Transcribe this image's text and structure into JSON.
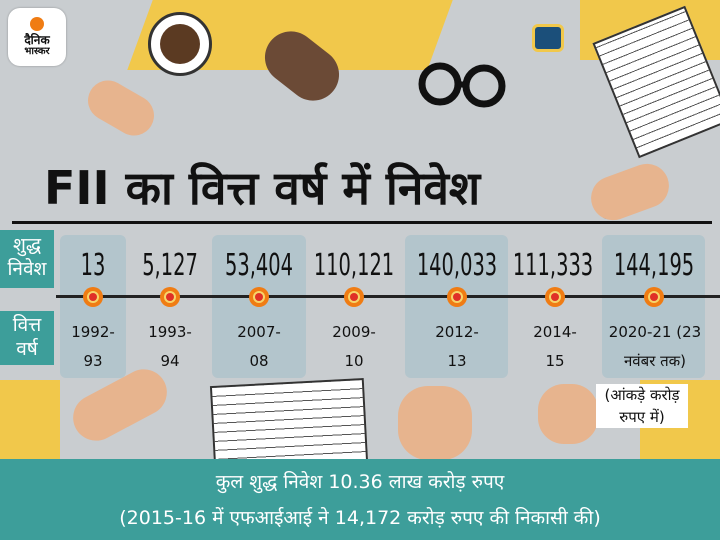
{
  "logo": {
    "line1": "दैनिक",
    "line2": "भास्कर"
  },
  "title": "FII का वित्त वर्ष में निवेश",
  "row_labels": {
    "net": [
      "शुद्ध",
      "निवेश"
    ],
    "year": [
      "वित्त",
      "वर्ष"
    ]
  },
  "entries": [
    {
      "net": "13",
      "year": [
        "1992-",
        "93"
      ]
    },
    {
      "net": "5,127",
      "year": [
        "1993-",
        "94"
      ]
    },
    {
      "net": "53,404",
      "year": [
        "2007-",
        "08"
      ]
    },
    {
      "net": "110,121",
      "year": [
        "2009-",
        "10"
      ]
    },
    {
      "net": "140,033",
      "year": [
        "2012-",
        "13"
      ]
    },
    {
      "net": "111,333",
      "year": [
        "2014-",
        "15"
      ]
    },
    {
      "net": "144,195",
      "year": [
        "2020-21 (23",
        "नवंबर तक)"
      ]
    }
  ],
  "note": [
    "(आंकड़े करोड़",
    "रुपए में)"
  ],
  "footer": {
    "line1": "कुल शुद्ध निवेश 10.36 लाख करोड़ रुपए",
    "line2": "(2015-16 में एफआईआई ने 14,172 करोड़ रुपए की निकासी की)"
  },
  "colors": {
    "teal": "#3d9e9a",
    "orange": "#f07c13",
    "red": "#e03027",
    "yellow": "#f1c84b",
    "background": "#c9cdd0",
    "highlight": "#b3c5cc"
  }
}
